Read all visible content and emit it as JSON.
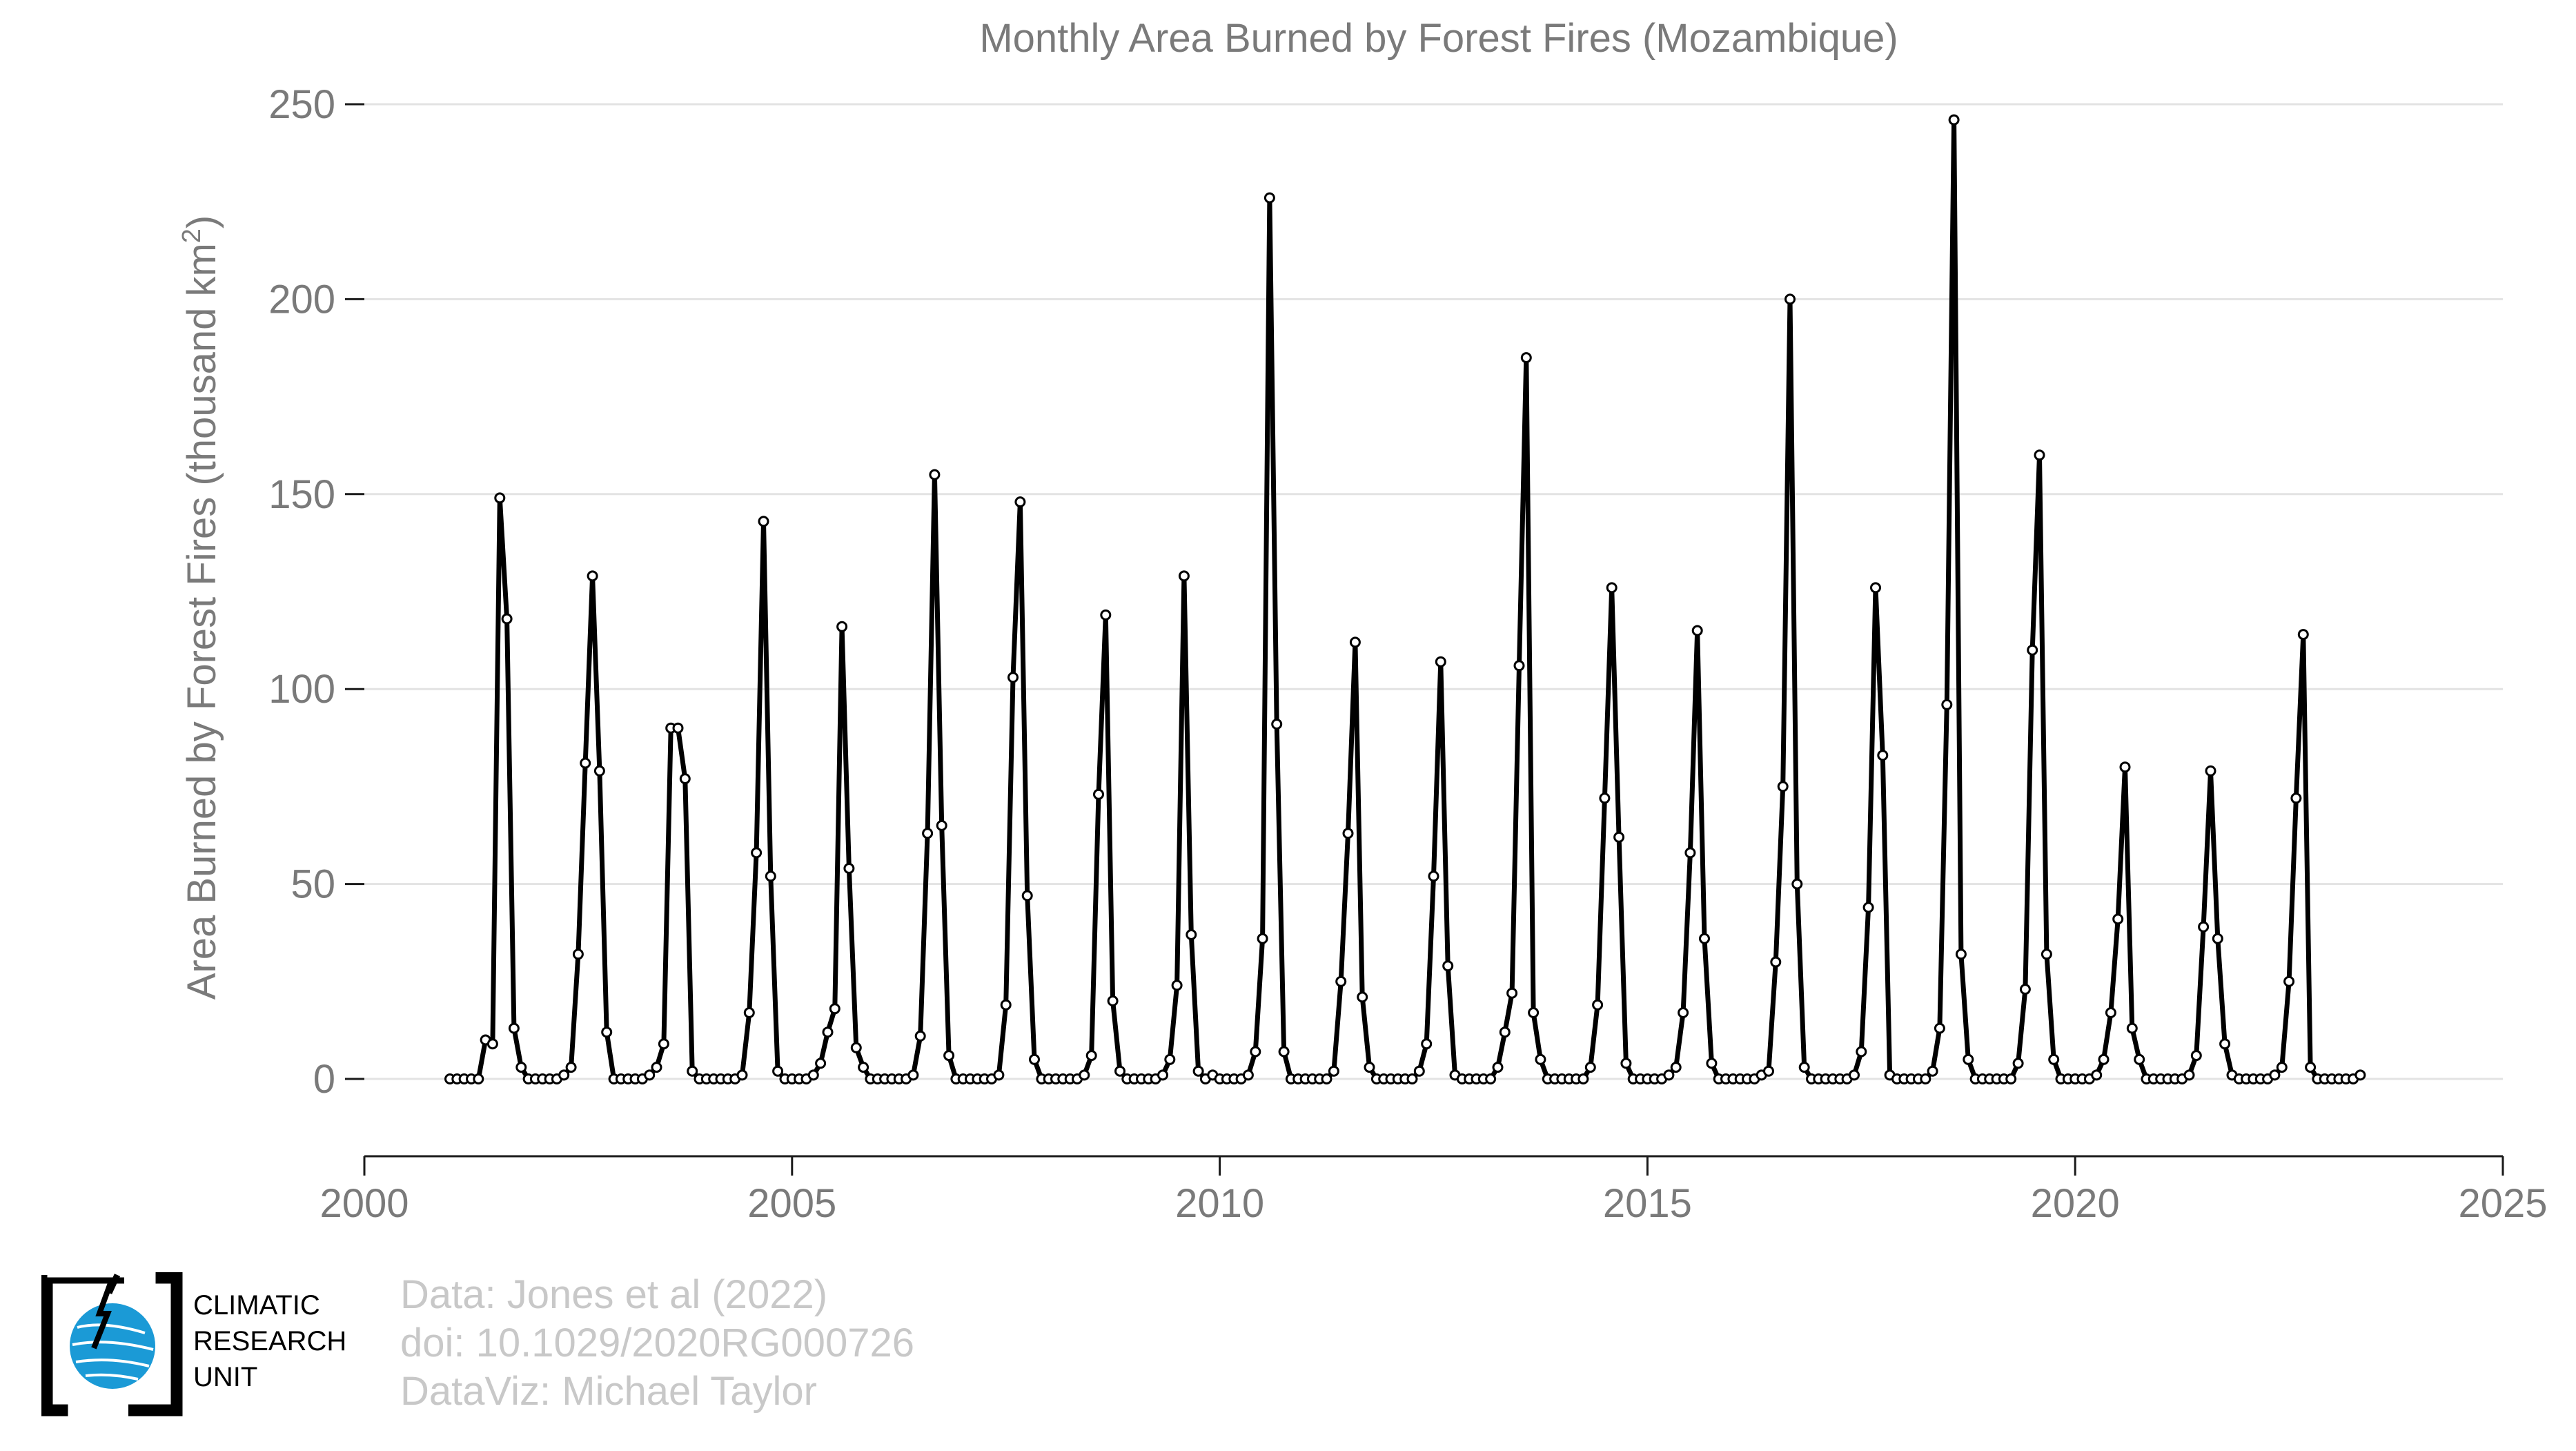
{
  "chart_data": {
    "type": "line",
    "title": "Monthly Area Burned by Forest Fires (Mozambique)",
    "ylabel": "Area Burned by Forest Fires (thousand km",
    "ylabel_sup": "2",
    "ylabel_end": ")",
    "xlim": [
      2000,
      2025
    ],
    "ylim": [
      -20,
      255
    ],
    "x_ticks": [
      2000,
      2005,
      2010,
      2015,
      2020,
      2025
    ],
    "y_ticks": [
      0,
      50,
      100,
      150,
      200,
      250
    ],
    "grid": "horizontal",
    "start_year": 2001,
    "start_month": 1,
    "series": [
      {
        "color": "#000000",
        "values": [
          0,
          0,
          0,
          0,
          0,
          10,
          9,
          149,
          118,
          13,
          3,
          0,
          0,
          0,
          0,
          0,
          1,
          3,
          32,
          81,
          129,
          79,
          12,
          0,
          0,
          0,
          0,
          0,
          1,
          3,
          9,
          90,
          90,
          77,
          2,
          0,
          0,
          0,
          0,
          0,
          0,
          1,
          17,
          58,
          143,
          52,
          2,
          0,
          0,
          0,
          0,
          1,
          4,
          12,
          18,
          116,
          54,
          8,
          3,
          0,
          0,
          0,
          0,
          0,
          0,
          1,
          11,
          63,
          155,
          65,
          6,
          0,
          0,
          0,
          0,
          0,
          0,
          1,
          19,
          103,
          148,
          47,
          5,
          0,
          0,
          0,
          0,
          0,
          0,
          1,
          6,
          73,
          119,
          20,
          2,
          0,
          0,
          0,
          0,
          0,
          1,
          5,
          24,
          129,
          37,
          2,
          0,
          1,
          0,
          0,
          0,
          0,
          1,
          7,
          36,
          226,
          91,
          7,
          0,
          0,
          0,
          0,
          0,
          0,
          2,
          25,
          63,
          112,
          21,
          3,
          0,
          0,
          0,
          0,
          0,
          0,
          2,
          9,
          52,
          107,
          29,
          1,
          0,
          0,
          0,
          0,
          0,
          3,
          12,
          22,
          106,
          185,
          17,
          5,
          0,
          0,
          0,
          0,
          0,
          0,
          3,
          19,
          72,
          126,
          62,
          4,
          0,
          0,
          0,
          0,
          0,
          1,
          3,
          17,
          58,
          115,
          36,
          4,
          0,
          0,
          0,
          0,
          0,
          0,
          1,
          2,
          30,
          75,
          200,
          50,
          3,
          0,
          0,
          0,
          0,
          0,
          0,
          1,
          7,
          44,
          126,
          83,
          1,
          0,
          0,
          0,
          0,
          0,
          2,
          13,
          96,
          246,
          32,
          5,
          0,
          0,
          0,
          0,
          0,
          0,
          4,
          23,
          110,
          160,
          32,
          5,
          0,
          0,
          0,
          0,
          0,
          1,
          5,
          17,
          41,
          80,
          13,
          5,
          0,
          0,
          0,
          0,
          0,
          0,
          1,
          6,
          39,
          79,
          36,
          9,
          1,
          0,
          0,
          0,
          0,
          0,
          1,
          3,
          25,
          72,
          114,
          3,
          0,
          0,
          0,
          0,
          0,
          0,
          1
        ]
      }
    ]
  },
  "credits": {
    "line1": "Data: Jones et al (2022)",
    "line2": "doi: 10.1029/2020RG000726",
    "line3": "DataViz: Michael Taylor"
  },
  "logo": {
    "line1": "CLIMATIC",
    "line2": "RESEARCH",
    "line3": "UNIT",
    "globe_color": "#1b9ad6"
  }
}
